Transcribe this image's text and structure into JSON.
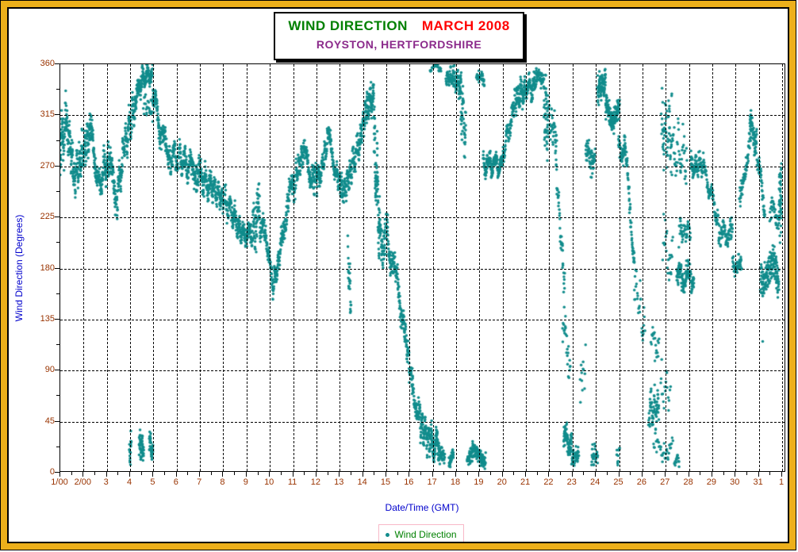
{
  "window": {
    "frame_gold_color": "#EDB01B",
    "frame_line_color": "#000000",
    "background": "#FFFFFF"
  },
  "title_box": {
    "line1_left": "WIND DIRECTION",
    "line1_right": "MARCH 2008",
    "line2": "ROYSTON, HERTFORDSHIRE",
    "line1_left_color": "#008000",
    "line1_right_color": "#FF0000",
    "line2_color": "#8B2A8B"
  },
  "chart_data": {
    "type": "scatter",
    "title": "WIND DIRECTION  MARCH 2008",
    "subtitle": "ROYSTON, HERTFORDSHIRE",
    "xlabel": "Date/Time (GMT)",
    "ylabel": "Wind Direction (Degrees)",
    "grid": "dashed-black-on-white",
    "x_axis": {
      "range_days": [
        1,
        32
      ],
      "tick_labels": [
        "1/00",
        "2/00",
        "3",
        "4",
        "5",
        "6",
        "7",
        "8",
        "9",
        "10",
        "11",
        "12",
        "13",
        "14",
        "15",
        "16",
        "17",
        "18",
        "19",
        "20",
        "21",
        "22",
        "23",
        "24",
        "25",
        "26",
        "27",
        "28",
        "29",
        "30",
        "31",
        "1"
      ],
      "minor_tick_interval_days": 0.5
    },
    "y_axis": {
      "range": [
        0,
        360
      ],
      "ticks": [
        0,
        45,
        90,
        135,
        180,
        225,
        270,
        315,
        360
      ],
      "minor_tick_interval": 22.5
    },
    "colors": {
      "marker": "#118C8C",
      "tick_labels": "#993300",
      "axis_titles": "#0000CC",
      "legend_text": "#008000",
      "legend_border": "#F8B8C8"
    },
    "legend": {
      "label": "Wind Direction",
      "position": "bottom-center"
    },
    "series": [
      {
        "name": "Wind Direction",
        "marker": "dot",
        "marker_px": 3.5,
        "segment_format": "[dayStart, dayEnd, degStart, degEnd, spreadDeg, nPoints]",
        "band_segments_day_deg": [
          [
            1.0,
            1.3,
            288,
            305,
            30,
            70
          ],
          [
            1.3,
            1.65,
            305,
            262,
            22,
            70
          ],
          [
            1.65,
            2.0,
            262,
            282,
            22,
            70
          ],
          [
            2.0,
            2.35,
            282,
            300,
            20,
            70
          ],
          [
            2.35,
            2.7,
            300,
            252,
            18,
            70
          ],
          [
            2.7,
            3.1,
            252,
            277,
            20,
            70
          ],
          [
            3.1,
            3.45,
            277,
            242,
            18,
            70
          ],
          [
            3.45,
            3.8,
            242,
            287,
            20,
            70
          ],
          [
            3.8,
            4.25,
            287,
            325,
            22,
            80
          ],
          [
            4.25,
            4.55,
            325,
            348,
            14,
            70
          ],
          [
            4.55,
            5.0,
            348,
            350,
            12,
            90
          ],
          [
            4.6,
            5.0,
            325,
            318,
            12,
            25
          ],
          [
            5.0,
            5.3,
            338,
            303,
            16,
            60
          ],
          [
            5.3,
            5.7,
            303,
            280,
            16,
            70
          ],
          [
            5.7,
            6.2,
            280,
            275,
            18,
            80
          ],
          [
            6.2,
            6.7,
            275,
            268,
            18,
            80
          ],
          [
            6.7,
            7.1,
            268,
            260,
            20,
            70
          ],
          [
            7.1,
            7.5,
            260,
            250,
            16,
            70
          ],
          [
            7.5,
            8.0,
            252,
            240,
            15,
            80
          ],
          [
            8.0,
            8.45,
            238,
            228,
            16,
            70
          ],
          [
            8.45,
            8.8,
            228,
            210,
            13,
            60
          ],
          [
            8.8,
            9.3,
            208,
            212,
            13,
            90
          ],
          [
            9.3,
            9.6,
            228,
            225,
            33,
            55
          ],
          [
            9.6,
            9.85,
            215,
            213,
            14,
            40
          ],
          [
            9.85,
            10.15,
            213,
            163,
            12,
            50
          ],
          [
            10.15,
            10.45,
            163,
            188,
            13,
            55
          ],
          [
            10.45,
            10.8,
            188,
            238,
            16,
            60
          ],
          [
            10.8,
            11.15,
            238,
            262,
            18,
            60
          ],
          [
            11.15,
            11.5,
            262,
            283,
            13,
            60
          ],
          [
            11.5,
            11.85,
            283,
            258,
            13,
            60
          ],
          [
            11.85,
            12.2,
            258,
            262,
            15,
            60
          ],
          [
            12.2,
            12.55,
            262,
            295,
            13,
            60
          ],
          [
            12.55,
            12.9,
            295,
            262,
            13,
            60
          ],
          [
            12.9,
            13.2,
            262,
            246,
            13,
            50
          ],
          [
            13.2,
            13.55,
            246,
            268,
            16,
            60
          ],
          [
            13.38,
            13.52,
            190,
            148,
            22,
            25
          ],
          [
            13.55,
            13.9,
            268,
            292,
            16,
            60
          ],
          [
            13.9,
            14.2,
            292,
            322,
            16,
            60
          ],
          [
            14.2,
            14.5,
            322,
            331,
            17,
            75
          ],
          [
            14.5,
            14.75,
            295,
            215,
            45,
            80
          ],
          [
            14.75,
            15.1,
            212,
            200,
            28,
            70
          ],
          [
            15.1,
            15.45,
            200,
            172,
            16,
            60
          ],
          [
            15.45,
            15.8,
            172,
            128,
            16,
            60
          ],
          [
            15.8,
            16.15,
            128,
            75,
            16,
            60
          ],
          [
            16.15,
            16.5,
            75,
            42,
            16,
            60
          ],
          [
            16.5,
            16.9,
            42,
            26,
            16,
            80
          ],
          [
            16.9,
            17.35,
            26,
            24,
            18,
            90
          ],
          [
            17.35,
            17.55,
            18,
            12,
            8,
            25
          ],
          [
            4.0,
            4.08,
            18,
            22,
            14,
            18
          ],
          [
            4.42,
            4.62,
            22,
            22,
            15,
            55
          ],
          [
            4.85,
            5.02,
            22,
            22,
            15,
            45
          ],
          [
            16.9,
            17.4,
            356,
            356,
            5,
            25
          ],
          [
            17.6,
            17.95,
            350,
            346,
            10,
            55
          ],
          [
            17.72,
            17.92,
            12,
            12,
            9,
            40
          ],
          [
            17.95,
            18.25,
            346,
            340,
            14,
            50
          ],
          [
            18.2,
            18.45,
            330,
            296,
            30,
            45
          ],
          [
            18.5,
            19.3,
            14,
            14,
            11,
            130
          ],
          [
            18.9,
            19.25,
            352,
            342,
            8,
            35
          ],
          [
            19.2,
            20.05,
            272,
            270,
            14,
            170
          ],
          [
            20.05,
            20.55,
            282,
            322,
            14,
            70
          ],
          [
            20.55,
            21.0,
            330,
            335,
            16,
            90
          ],
          [
            21.0,
            21.45,
            340,
            338,
            14,
            80
          ],
          [
            21.45,
            21.8,
            345,
            350,
            10,
            50
          ],
          [
            21.8,
            22.0,
            330,
            300,
            40,
            50
          ],
          [
            22.0,
            22.35,
            312,
            296,
            22,
            35
          ],
          [
            22.3,
            22.7,
            276,
            160,
            18,
            45
          ],
          [
            22.6,
            22.95,
            130,
            95,
            25,
            25
          ],
          [
            22.65,
            23.0,
            28,
            28,
            16,
            85
          ],
          [
            23.0,
            23.3,
            14,
            14,
            10,
            45
          ],
          [
            23.35,
            23.6,
            85,
            85,
            28,
            12
          ],
          [
            23.6,
            24.0,
            278,
            278,
            16,
            60
          ],
          [
            23.85,
            24.12,
            14,
            14,
            11,
            28
          ],
          [
            24.1,
            24.45,
            338,
            342,
            14,
            90
          ],
          [
            24.45,
            25.05,
            318,
            315,
            16,
            150
          ],
          [
            24.93,
            25.05,
            15,
            15,
            11,
            12
          ],
          [
            25.0,
            25.3,
            285,
            278,
            14,
            45
          ],
          [
            25.25,
            25.7,
            295,
            185,
            14,
            60
          ],
          [
            25.65,
            26.15,
            175,
            120,
            25,
            30
          ],
          [
            26.3,
            26.75,
            55,
            55,
            20,
            70
          ],
          [
            26.4,
            26.75,
            108,
            114,
            20,
            20
          ],
          [
            26.5,
            27.35,
            22,
            22,
            15,
            35
          ],
          [
            26.8,
            27.25,
            70,
            70,
            25,
            18
          ],
          [
            26.85,
            27.3,
            300,
            300,
            40,
            60
          ],
          [
            26.9,
            27.35,
            195,
            195,
            30,
            25
          ],
          [
            27.3,
            27.95,
            280,
            280,
            35,
            45
          ],
          [
            27.4,
            27.62,
            10,
            10,
            8,
            15
          ],
          [
            27.5,
            28.25,
            172,
            172,
            18,
            130
          ],
          [
            27.6,
            28.1,
            212,
            212,
            14,
            45
          ],
          [
            28.1,
            28.65,
            268,
            272,
            13,
            85
          ],
          [
            28.65,
            29.3,
            268,
            222,
            12,
            75
          ],
          [
            29.3,
            29.9,
            212,
            208,
            16,
            75
          ],
          [
            29.9,
            30.3,
            185,
            180,
            13,
            55
          ],
          [
            30.2,
            30.7,
            232,
            302,
            16,
            65
          ],
          [
            30.65,
            30.95,
            302,
            295,
            18,
            55
          ],
          [
            30.95,
            31.3,
            280,
            232,
            14,
            45
          ],
          [
            31.1,
            31.9,
            178,
            172,
            24,
            150
          ],
          [
            31.5,
            31.92,
            228,
            228,
            16,
            35
          ],
          [
            31.9,
            32.02,
            238,
            242,
            38,
            50
          ]
        ],
        "outlier_points": [
          [
            31.2,
            115
          ]
        ]
      }
    ]
  }
}
